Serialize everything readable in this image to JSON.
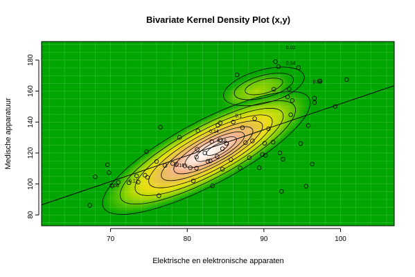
{
  "chart_data": {
    "type": "scatter",
    "subtype": "bivariate kernel density with contours",
    "title": "Bivariate Kernel Density Plot (x,y)",
    "xlabel": "Elektrische en elektronische apparaten",
    "ylabel": "Medische apparatuur",
    "xlim": [
      61,
      107
    ],
    "ylim": [
      73,
      192
    ],
    "xticks": [
      70,
      80,
      90,
      100
    ],
    "yticks": [
      80,
      100,
      120,
      140,
      160,
      180
    ],
    "grid": true,
    "contour_levels": [
      "0.02",
      "0.04",
      "0.06",
      "0.08",
      "0.1",
      "0.12",
      "0.14",
      "0.16",
      "0.18"
    ],
    "regression_line": [
      [
        61,
        86.5
      ],
      [
        107,
        163.5
      ]
    ],
    "points": [
      [
        67.3,
        86.2
      ],
      [
        68.0,
        104.6
      ],
      [
        69.6,
        112.4
      ],
      [
        69.8,
        107.3
      ],
      [
        70.2,
        98.8
      ],
      [
        71.0,
        101.0
      ],
      [
        72.4,
        100.8
      ],
      [
        73.4,
        105.2
      ],
      [
        73.6,
        101.2
      ],
      [
        74.5,
        105.6
      ],
      [
        74.8,
        104.3
      ],
      [
        74.7,
        120.8
      ],
      [
        76.3,
        92.4
      ],
      [
        76.0,
        114.5
      ],
      [
        76.5,
        136.7
      ],
      [
        77.1,
        112.0
      ],
      [
        78.1,
        113.2
      ],
      [
        78.6,
        112.7
      ],
      [
        79.0,
        130.1
      ],
      [
        79.7,
        111.7
      ],
      [
        80.4,
        110.5
      ],
      [
        80.8,
        102.0
      ],
      [
        81.2,
        117.4
      ],
      [
        81.3,
        122.4
      ],
      [
        81.4,
        134.4
      ],
      [
        81.2,
        110.2
      ],
      [
        82.3,
        120.0
      ],
      [
        82.7,
        114.6
      ],
      [
        83.0,
        114.9
      ],
      [
        83.3,
        98.8
      ],
      [
        83.2,
        127.4
      ],
      [
        83.9,
        117.8
      ],
      [
        84.0,
        137.9
      ],
      [
        84.3,
        139.5
      ],
      [
        84.3,
        128.5
      ],
      [
        84.6,
        109.5
      ],
      [
        84.6,
        122.8
      ],
      [
        85.1,
        126.2
      ],
      [
        85.7,
        115.7
      ],
      [
        86.0,
        140.0
      ],
      [
        86.5,
        170.5
      ],
      [
        86.9,
        110.3
      ],
      [
        87.2,
        136.4
      ],
      [
        87.6,
        126.7
      ],
      [
        88.1,
        117.0
      ],
      [
        88.8,
        142.2
      ],
      [
        88.5,
        127.8
      ],
      [
        89.4,
        110.5
      ],
      [
        89.8,
        119.1
      ],
      [
        90.1,
        126.3
      ],
      [
        90.2,
        118.5
      ],
      [
        90.6,
        135.7
      ],
      [
        91.2,
        127.0
      ],
      [
        91.3,
        161.2
      ],
      [
        91.5,
        179.0
      ],
      [
        91.9,
        175.8
      ],
      [
        92.1,
        120.1
      ],
      [
        92.3,
        95.2
      ],
      [
        92.5,
        116.0
      ],
      [
        93.1,
        156.2
      ],
      [
        93.3,
        161.3
      ],
      [
        93.5,
        144.7
      ],
      [
        93.7,
        153.9
      ],
      [
        94.5,
        175.1
      ],
      [
        94.8,
        126.1
      ],
      [
        95.5,
        98.6
      ],
      [
        95.8,
        137.7
      ],
      [
        96.3,
        112.8
      ],
      [
        96.6,
        152.6
      ],
      [
        96.6,
        155.4
      ],
      [
        97.3,
        166.5
      ],
      [
        99.3,
        150.1
      ],
      [
        100.8,
        167.4
      ]
    ]
  }
}
